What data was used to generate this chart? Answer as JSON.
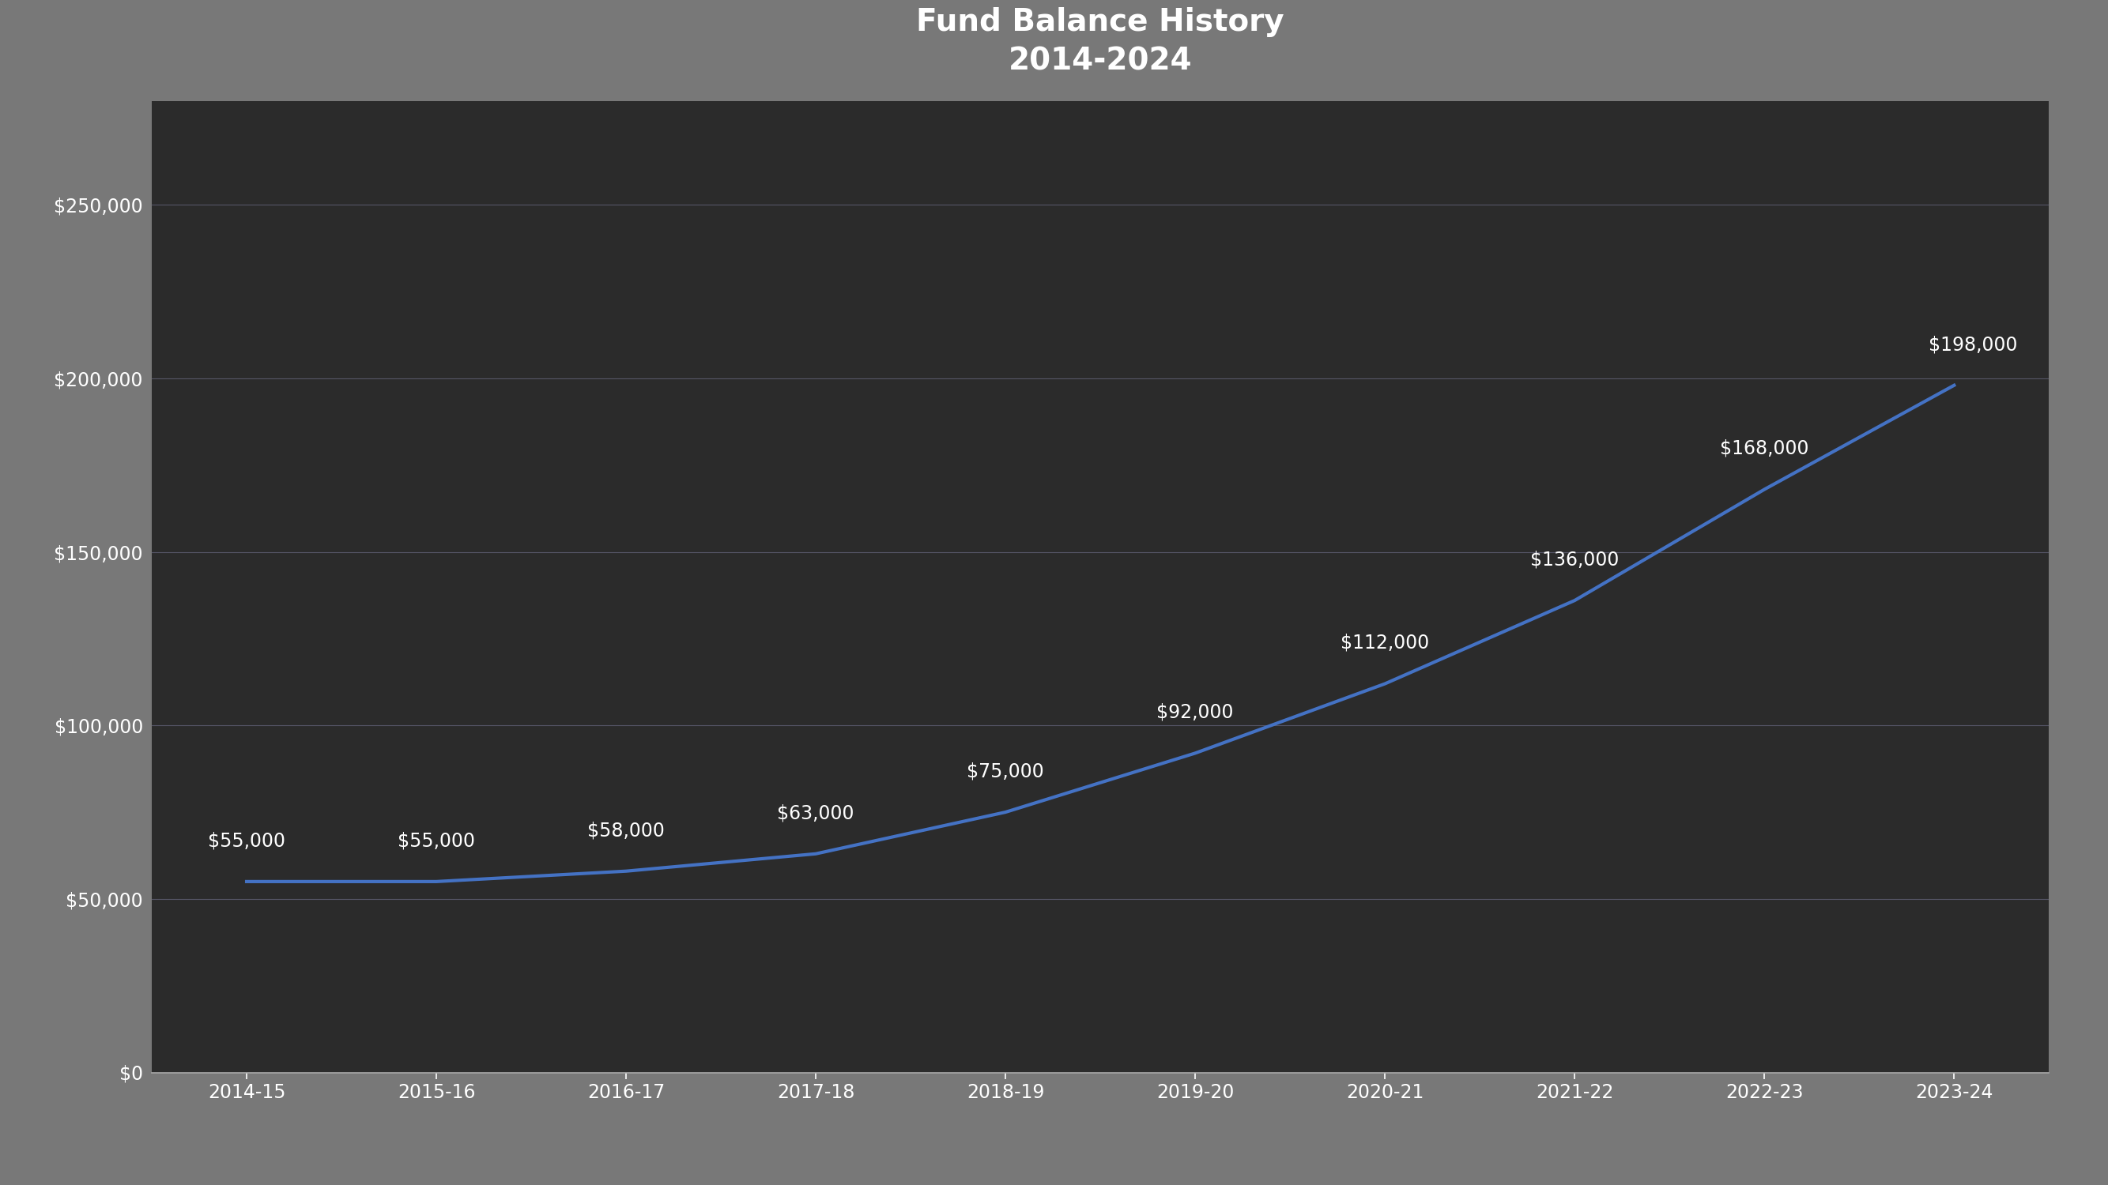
{
  "title_line1": "Fund Balance History",
  "title_line2": "2014-2024",
  "categories": [
    "2014-15",
    "2015-16",
    "2016-17",
    "2017-18",
    "2018-19",
    "2019-20",
    "2020-21",
    "2021-22",
    "2022-23",
    "2023-24"
  ],
  "values": [
    55000,
    55000,
    58000,
    63000,
    75000,
    92000,
    112000,
    136000,
    168000,
    198000
  ],
  "labels": [
    "$55,000",
    "$55,000",
    "$58,000",
    "$63,000",
    "$75,000",
    "$92,000",
    "$112,000",
    "$136,000",
    "$168,000",
    "$198,000"
  ],
  "line_color": "#4472C4",
  "line_width": 3.0,
  "background_outer": "#787878",
  "background_white": "#ffffff",
  "background_dark": "#2b2b2b",
  "text_color": "#ffffff",
  "grid_color": "#555566",
  "axis_color": "#aaaaaa",
  "title_fontsize": 28,
  "label_fontsize": 17,
  "tick_fontsize": 17,
  "ylim": [
    0,
    280000
  ],
  "yticks": [
    0,
    50000,
    100000,
    150000,
    200000,
    250000
  ],
  "ytick_labels": [
    "$0",
    "$50,000",
    "$100,000",
    "$150,000",
    "$200,000",
    "$250,000"
  ],
  "label_offsets_x": [
    0,
    0,
    0,
    0,
    0,
    0,
    0,
    0,
    0,
    0.1
  ],
  "label_offsets_y": [
    9000,
    9000,
    9000,
    9000,
    9000,
    9000,
    9000,
    9000,
    9000,
    9000
  ]
}
